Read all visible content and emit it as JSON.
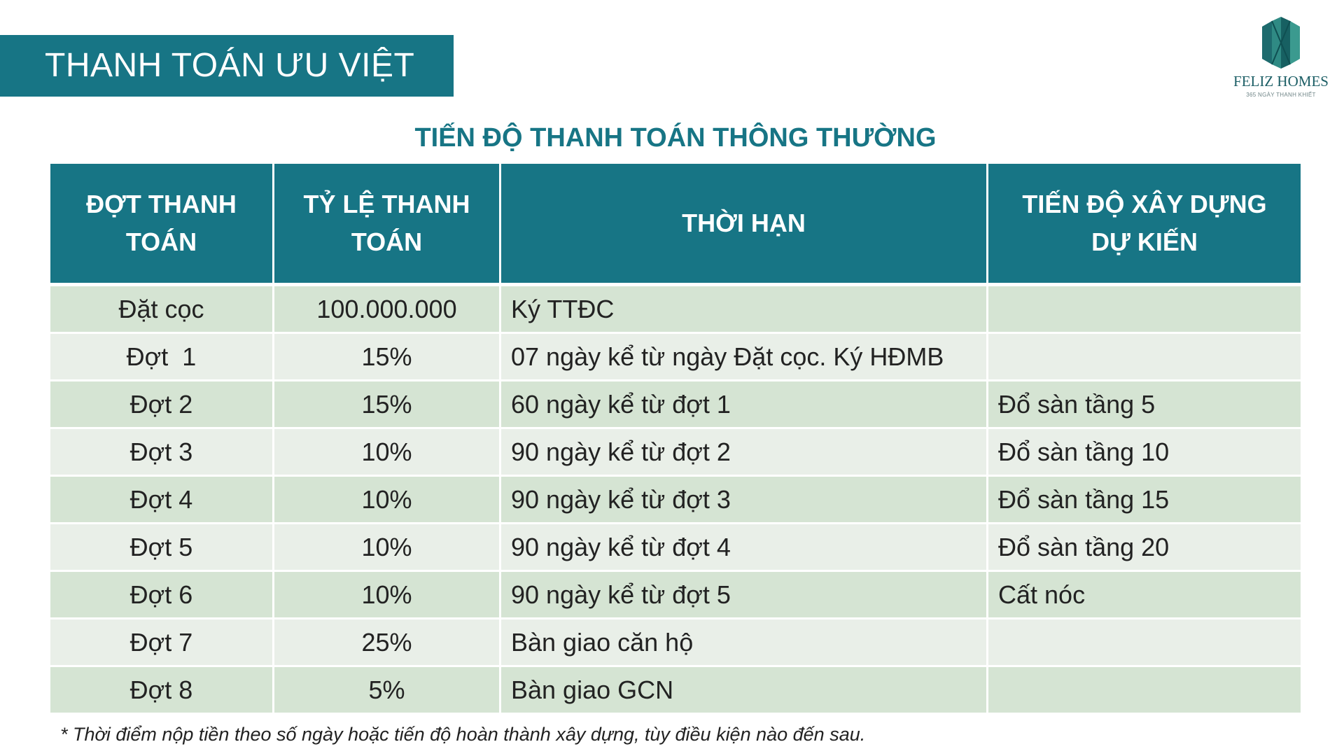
{
  "header": {
    "title": "THANH TOÁN ƯU VIỆT",
    "logo_name": "FELIZ HOMES",
    "logo_tagline": "365 NGÀY THANH KHIẾT",
    "logo_icon": "feliz-homes-logo-icon"
  },
  "subtitle": "TIẾN ĐỘ THANH TOÁN THÔNG THƯỜNG",
  "table": {
    "headers": [
      "ĐỢT THANH TOÁN",
      "TỶ LỆ THANH TOÁN",
      "THỜI HẠN",
      "TIẾN ĐỘ XÂY DỰNG DỰ KIẾN"
    ],
    "rows": [
      {
        "dot": "Đặt cọc",
        "ty_le": "100.000.000",
        "thoi_han": "Ký TTĐC",
        "tien_do": ""
      },
      {
        "dot": "Đợt  1",
        "ty_le": "15%",
        "thoi_han": "07 ngày kể từ ngày Đặt cọc. Ký HĐMB",
        "tien_do": ""
      },
      {
        "dot": "Đợt 2",
        "ty_le": "15%",
        "thoi_han": "60 ngày kể từ đợt 1",
        "tien_do": "Đổ sàn tầng 5"
      },
      {
        "dot": "Đợt 3",
        "ty_le": "10%",
        "thoi_han": "90 ngày kể từ đợt 2",
        "tien_do": "Đổ sàn tầng 10"
      },
      {
        "dot": "Đợt 4",
        "ty_le": "10%",
        "thoi_han": "90 ngày kể từ đợt 3",
        "tien_do": "Đổ sàn tầng 15"
      },
      {
        "dot": "Đợt 5",
        "ty_le": "10%",
        "thoi_han": "90 ngày kể từ đợt 4",
        "tien_do": "Đổ sàn tầng 20"
      },
      {
        "dot": "Đợt 6",
        "ty_le": "10%",
        "thoi_han": "90 ngày kể từ đợt 5",
        "tien_do": "Cất nóc"
      },
      {
        "dot": "Đợt 7",
        "ty_le": "25%",
        "thoi_han": "Bàn giao căn hộ",
        "tien_do": ""
      },
      {
        "dot": "Đợt 8",
        "ty_le": "5%",
        "thoi_han": "Bàn giao GCN",
        "tien_do": ""
      }
    ]
  },
  "footnote": "* Thời điểm nộp tiền theo số ngày hoặc tiến độ hoàn thành xây dựng, tùy điều kiện nào đến sau.",
  "colors": {
    "accent": "#177585",
    "row_odd": "#d5e4d3",
    "row_even": "#e9efe8",
    "logo_green": "#1d5f66"
  }
}
